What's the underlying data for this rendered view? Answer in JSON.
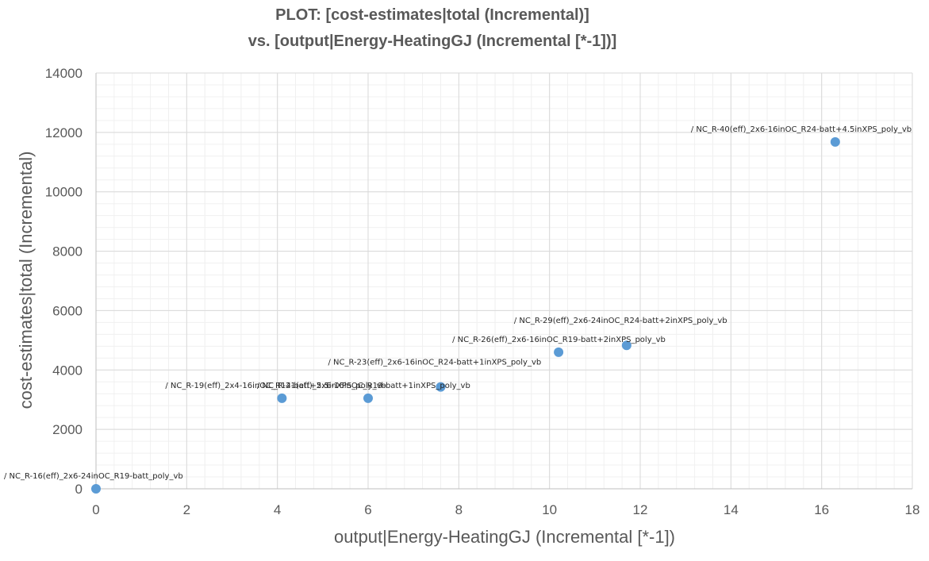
{
  "chart_data": {
    "type": "scatter",
    "title_lines": [
      "PLOT: [cost-estimates|total (Incremental)]",
      "vs. [output|Energy-HeatingGJ (Incremental [*-1])]"
    ],
    "xlabel": "output|Energy-HeatingGJ (Incremental [*-1])",
    "ylabel": "cost-estimates|total (Incremental)",
    "xlim": [
      0,
      18
    ],
    "ylim": [
      0,
      14000
    ],
    "x_ticks": [
      "0",
      "2",
      "4",
      "6",
      "8",
      "10",
      "12",
      "14",
      "16",
      "18"
    ],
    "y_ticks": [
      "0",
      "2000",
      "4000",
      "6000",
      "8000",
      "10000",
      "12000",
      "14000"
    ],
    "grid": true,
    "marker_color": "#5B9BD5",
    "points": [
      {
        "x": 0,
        "y": 0,
        "label": "/ NC_R-16(eff)_2x6-24inOC_R19-batt_poly_vb"
      },
      {
        "x": 4.1,
        "y": 3050,
        "label": "/ NC_R-19(eff)_2x4-16inOC_R14-batt+5.5inXPS_poly_vb"
      },
      {
        "x": 6.0,
        "y": 3050,
        "label": "/ NC_R-21(eff)_2x6-16inOC_R19-batt+1inXPS_poly_vb"
      },
      {
        "x": 7.6,
        "y": 3430,
        "label": "/ NC_R-23(eff)_2x6-16inOC_R24-batt+1inXPS_poly_vb"
      },
      {
        "x": 10.2,
        "y": 4600,
        "label": "/ NC_R-26(eff)_2x6-16inOC_R19-batt+2inXPS_poly_vb"
      },
      {
        "x": 11.7,
        "y": 4830,
        "label": "/ NC_R-29(eff)_2x6-24inOC_R24-batt+2inXPS_poly_vb"
      },
      {
        "x": 16.3,
        "y": 11680,
        "label": "/ NC_R-40(eff)_2x6-16inOC_R24-batt+4.5inXPS_poly_vb"
      }
    ]
  }
}
